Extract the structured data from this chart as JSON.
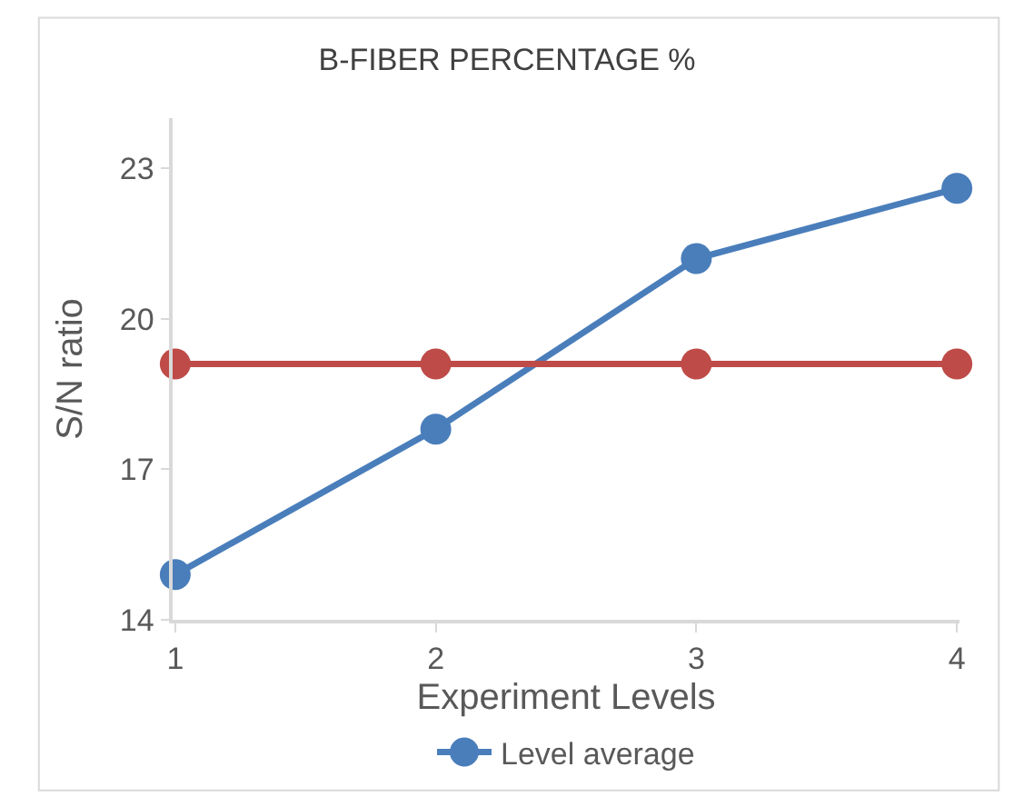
{
  "chart_data": {
    "type": "line",
    "title": "B-FIBER PERCENTAGE %",
    "xlabel": "Experiment Levels",
    "ylabel": "S/N ratio",
    "categories": [
      "1",
      "2",
      "3",
      "4"
    ],
    "series": [
      {
        "name": "Level average",
        "color": "#4a7ebb",
        "values": [
          14.9,
          17.8,
          21.2,
          22.6
        ]
      },
      {
        "color": "#be4b48",
        "values": [
          19.1,
          19.1,
          19.1,
          19.1
        ]
      }
    ],
    "ylim": [
      14,
      24
    ],
    "yticks": [
      14,
      17,
      20,
      23
    ],
    "legend": "bottom",
    "marker": "circle",
    "line_style": "solid"
  }
}
